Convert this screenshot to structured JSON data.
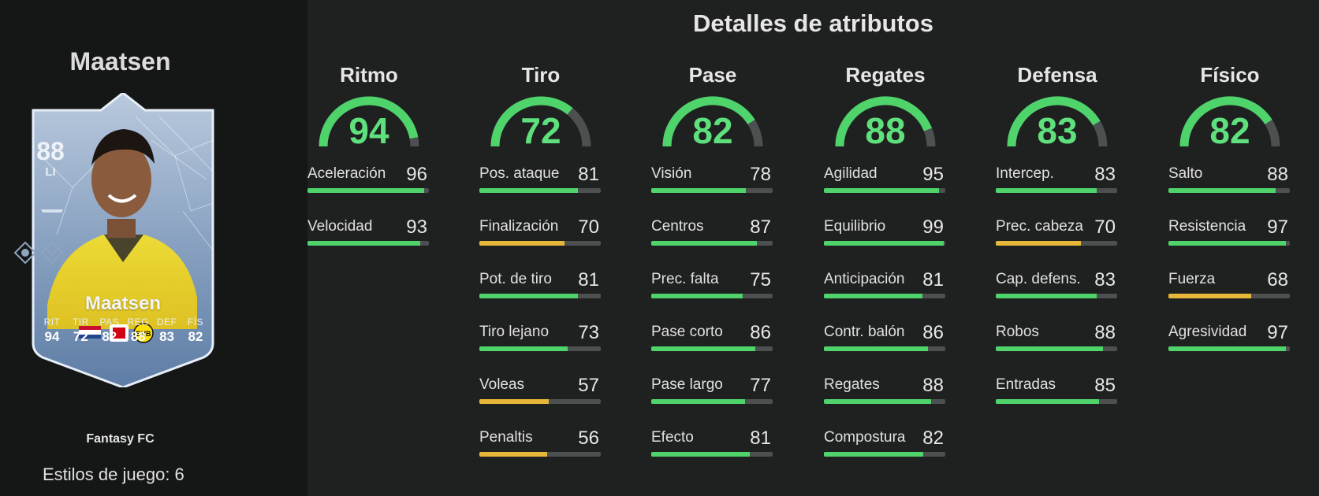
{
  "player": {
    "name": "Maatsen",
    "card_name": "Maatsen",
    "rating": "88",
    "position": "LI",
    "card_type": "Fantasy FC",
    "playstyles_label": "Estilos de juego: 6",
    "card_stats": [
      {
        "label": "RIT",
        "value": "94"
      },
      {
        "label": "TIR",
        "value": "72"
      },
      {
        "label": "PAS",
        "value": "82"
      },
      {
        "label": "REG",
        "value": "88"
      },
      {
        "label": "DEF",
        "value": "83"
      },
      {
        "label": "FÍS",
        "value": "82"
      }
    ]
  },
  "title": "Detalles de atributos",
  "colors": {
    "high": "#4fd36b",
    "mid": "#e7b73a",
    "track": "#4d5050",
    "gauge_value": "#5ee07d"
  },
  "categories": [
    {
      "name": "Ritmo",
      "value": 94,
      "attributes": [
        {
          "label": "Aceleración",
          "value": 96
        },
        {
          "label": "Velocidad",
          "value": 93
        }
      ]
    },
    {
      "name": "Tiro",
      "value": 72,
      "attributes": [
        {
          "label": "Pos. ataque",
          "value": 81
        },
        {
          "label": "Finalización",
          "value": 70
        },
        {
          "label": "Pot. de tiro",
          "value": 81
        },
        {
          "label": "Tiro lejano",
          "value": 73
        },
        {
          "label": "Voleas",
          "value": 57
        },
        {
          "label": "Penaltis",
          "value": 56
        }
      ]
    },
    {
      "name": "Pase",
      "value": 82,
      "attributes": [
        {
          "label": "Visión",
          "value": 78
        },
        {
          "label": "Centros",
          "value": 87
        },
        {
          "label": "Prec. falta",
          "value": 75
        },
        {
          "label": "Pase corto",
          "value": 86
        },
        {
          "label": "Pase largo",
          "value": 77
        },
        {
          "label": "Efecto",
          "value": 81
        }
      ]
    },
    {
      "name": "Regates",
      "value": 88,
      "attributes": [
        {
          "label": "Agilidad",
          "value": 95
        },
        {
          "label": "Equilibrio",
          "value": 99
        },
        {
          "label": "Anticipación",
          "value": 81
        },
        {
          "label": "Contr. balón",
          "value": 86
        },
        {
          "label": "Regates",
          "value": 88
        },
        {
          "label": "Compostura",
          "value": 82
        }
      ]
    },
    {
      "name": "Defensa",
      "value": 83,
      "attributes": [
        {
          "label": "Intercep.",
          "value": 83
        },
        {
          "label": "Prec. cabeza",
          "value": 70
        },
        {
          "label": "Cap. defens.",
          "value": 83
        },
        {
          "label": "Robos",
          "value": 88
        },
        {
          "label": "Entradas",
          "value": 85
        }
      ]
    },
    {
      "name": "Físico",
      "value": 82,
      "attributes": [
        {
          "label": "Salto",
          "value": 88
        },
        {
          "label": "Resistencia",
          "value": 97
        },
        {
          "label": "Fuerza",
          "value": 68
        },
        {
          "label": "Agresividad",
          "value": 97
        }
      ]
    }
  ]
}
